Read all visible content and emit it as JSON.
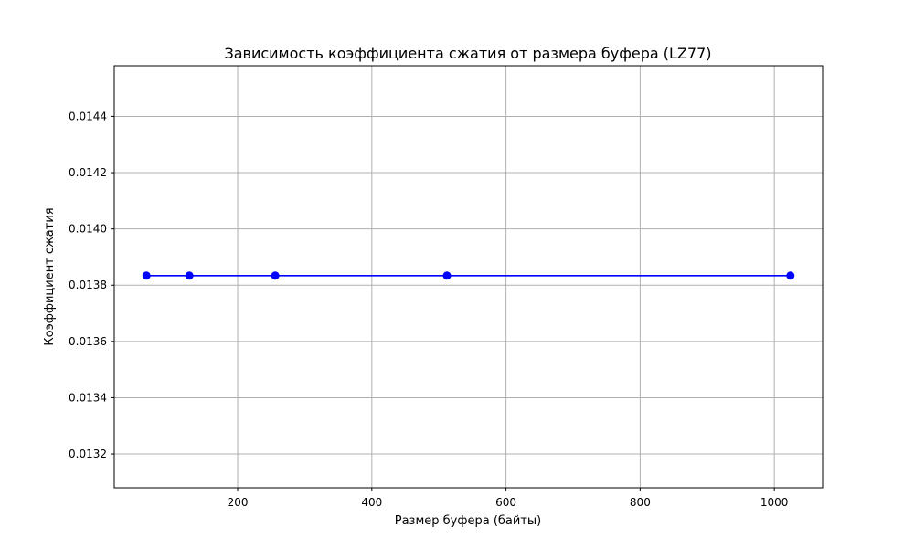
{
  "chart_data": {
    "type": "line",
    "title": "Зависимость коэффициента сжатия от размера буфера (LZ77)",
    "xlabel": "Размер буфера (байты)",
    "ylabel": "Коэффициент сжатия",
    "x_ticks": [
      "200",
      "400",
      "600",
      "800",
      "1000"
    ],
    "y_ticks": [
      "0.0132",
      "0.0134",
      "0.0136",
      "0.0138",
      "0.0140",
      "0.0142",
      "0.0144"
    ],
    "xlim": [
      16,
      1072
    ],
    "ylim": [
      0.01308,
      0.01458
    ],
    "grid": true,
    "series": [
      {
        "color": "#0000ff",
        "marker": "circle",
        "x": [
          64,
          128,
          256,
          512,
          1024
        ],
        "y": [
          0.013834,
          0.013834,
          0.013834,
          0.013834,
          0.013834
        ]
      }
    ]
  }
}
